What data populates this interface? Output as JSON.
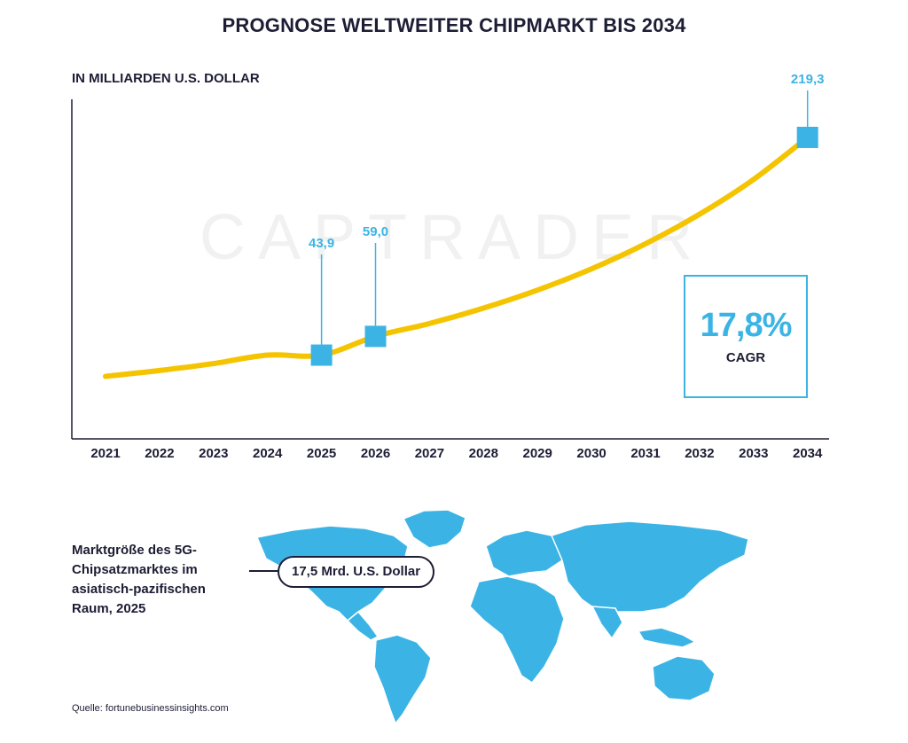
{
  "title": "PROGNOSE WELTWEITER CHIPMARKT BIS 2034",
  "unit_label": "IN MILLIARDEN U.S. DOLLAR",
  "watermark": "CAPTRADER",
  "colors": {
    "line": "#f5c400",
    "accent": "#3bb4e5",
    "text": "#1d1d35",
    "map": "#3bb4e5"
  },
  "chart_data": {
    "type": "line",
    "x": [
      "2021",
      "2022",
      "2023",
      "2024",
      "2025",
      "2026",
      "2027",
      "2028",
      "2029",
      "2030",
      "2031",
      "2032",
      "2033",
      "2034"
    ],
    "series": [
      {
        "values": [
          26.8,
          31.5,
          37.1,
          43.9,
          43.9,
          59.0,
          69.4,
          81.8,
          96.3,
          113.4,
          133.6,
          157.4,
          185.4,
          219.3
        ]
      }
    ],
    "highlighted_points": [
      {
        "x": "2025",
        "value": 43.9,
        "label": "43,9"
      },
      {
        "x": "2026",
        "value": 59.0,
        "label": "59,0"
      },
      {
        "x": "2034",
        "value": 219.3,
        "label": "219,3"
      }
    ],
    "ylim": [
      0,
      250
    ],
    "grid": false,
    "cagr": {
      "value": "17,8%",
      "label": "CAGR"
    }
  },
  "map_block": {
    "caption": "Marktgröße des 5G-Chipsatzmarktes im asiatisch-pazifischen Raum, 2025",
    "callout": "17,5 Mrd. U.S. Dollar"
  },
  "source": "Quelle: fortunebusinessinsights.com"
}
